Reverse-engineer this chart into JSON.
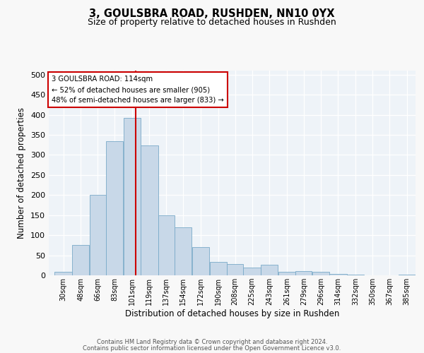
{
  "title_line1": "3, GOULSBRA ROAD, RUSHDEN, NN10 0YX",
  "title_line2": "Size of property relative to detached houses in Rushden",
  "xlabel": "Distribution of detached houses by size in Rushden",
  "ylabel": "Number of detached properties",
  "bar_color": "#c8d8e8",
  "bar_edge_color": "#7aaac8",
  "background_color": "#eef3f8",
  "grid_color": "#ffffff",
  "vline_color": "#cc0000",
  "vline_x": 114,
  "annotation_text": "3 GOULSBRA ROAD: 114sqm\n← 52% of detached houses are smaller (905)\n48% of semi-detached houses are larger (833) →",
  "annotation_box_color": "#ffffff",
  "annotation_box_edge": "#cc0000",
  "footer_line1": "Contains HM Land Registry data © Crown copyright and database right 2024.",
  "footer_line2": "Contains public sector information licensed under the Open Government Licence v3.0.",
  "categories": [
    "30sqm",
    "48sqm",
    "66sqm",
    "83sqm",
    "101sqm",
    "119sqm",
    "137sqm",
    "154sqm",
    "172sqm",
    "190sqm",
    "208sqm",
    "225sqm",
    "243sqm",
    "261sqm",
    "279sqm",
    "296sqm",
    "314sqm",
    "332sqm",
    "350sqm",
    "367sqm",
    "385sqm"
  ],
  "bar_lefts": [
    30,
    48,
    66,
    83,
    101,
    119,
    137,
    154,
    172,
    190,
    208,
    225,
    243,
    261,
    279,
    296,
    314,
    332,
    350,
    367,
    385
  ],
  "bar_widths": [
    18,
    18,
    17,
    18,
    18,
    18,
    17,
    18,
    18,
    18,
    17,
    18,
    18,
    18,
    17,
    18,
    18,
    18,
    17,
    18,
    18
  ],
  "bar_heights": [
    8,
    75,
    200,
    335,
    393,
    323,
    150,
    120,
    70,
    33,
    28,
    20,
    26,
    8,
    10,
    8,
    3,
    2,
    0,
    0,
    2
  ],
  "ylim": [
    0,
    510
  ],
  "yticks": [
    0,
    50,
    100,
    150,
    200,
    250,
    300,
    350,
    400,
    450,
    500
  ],
  "xlim": [
    24,
    403
  ]
}
